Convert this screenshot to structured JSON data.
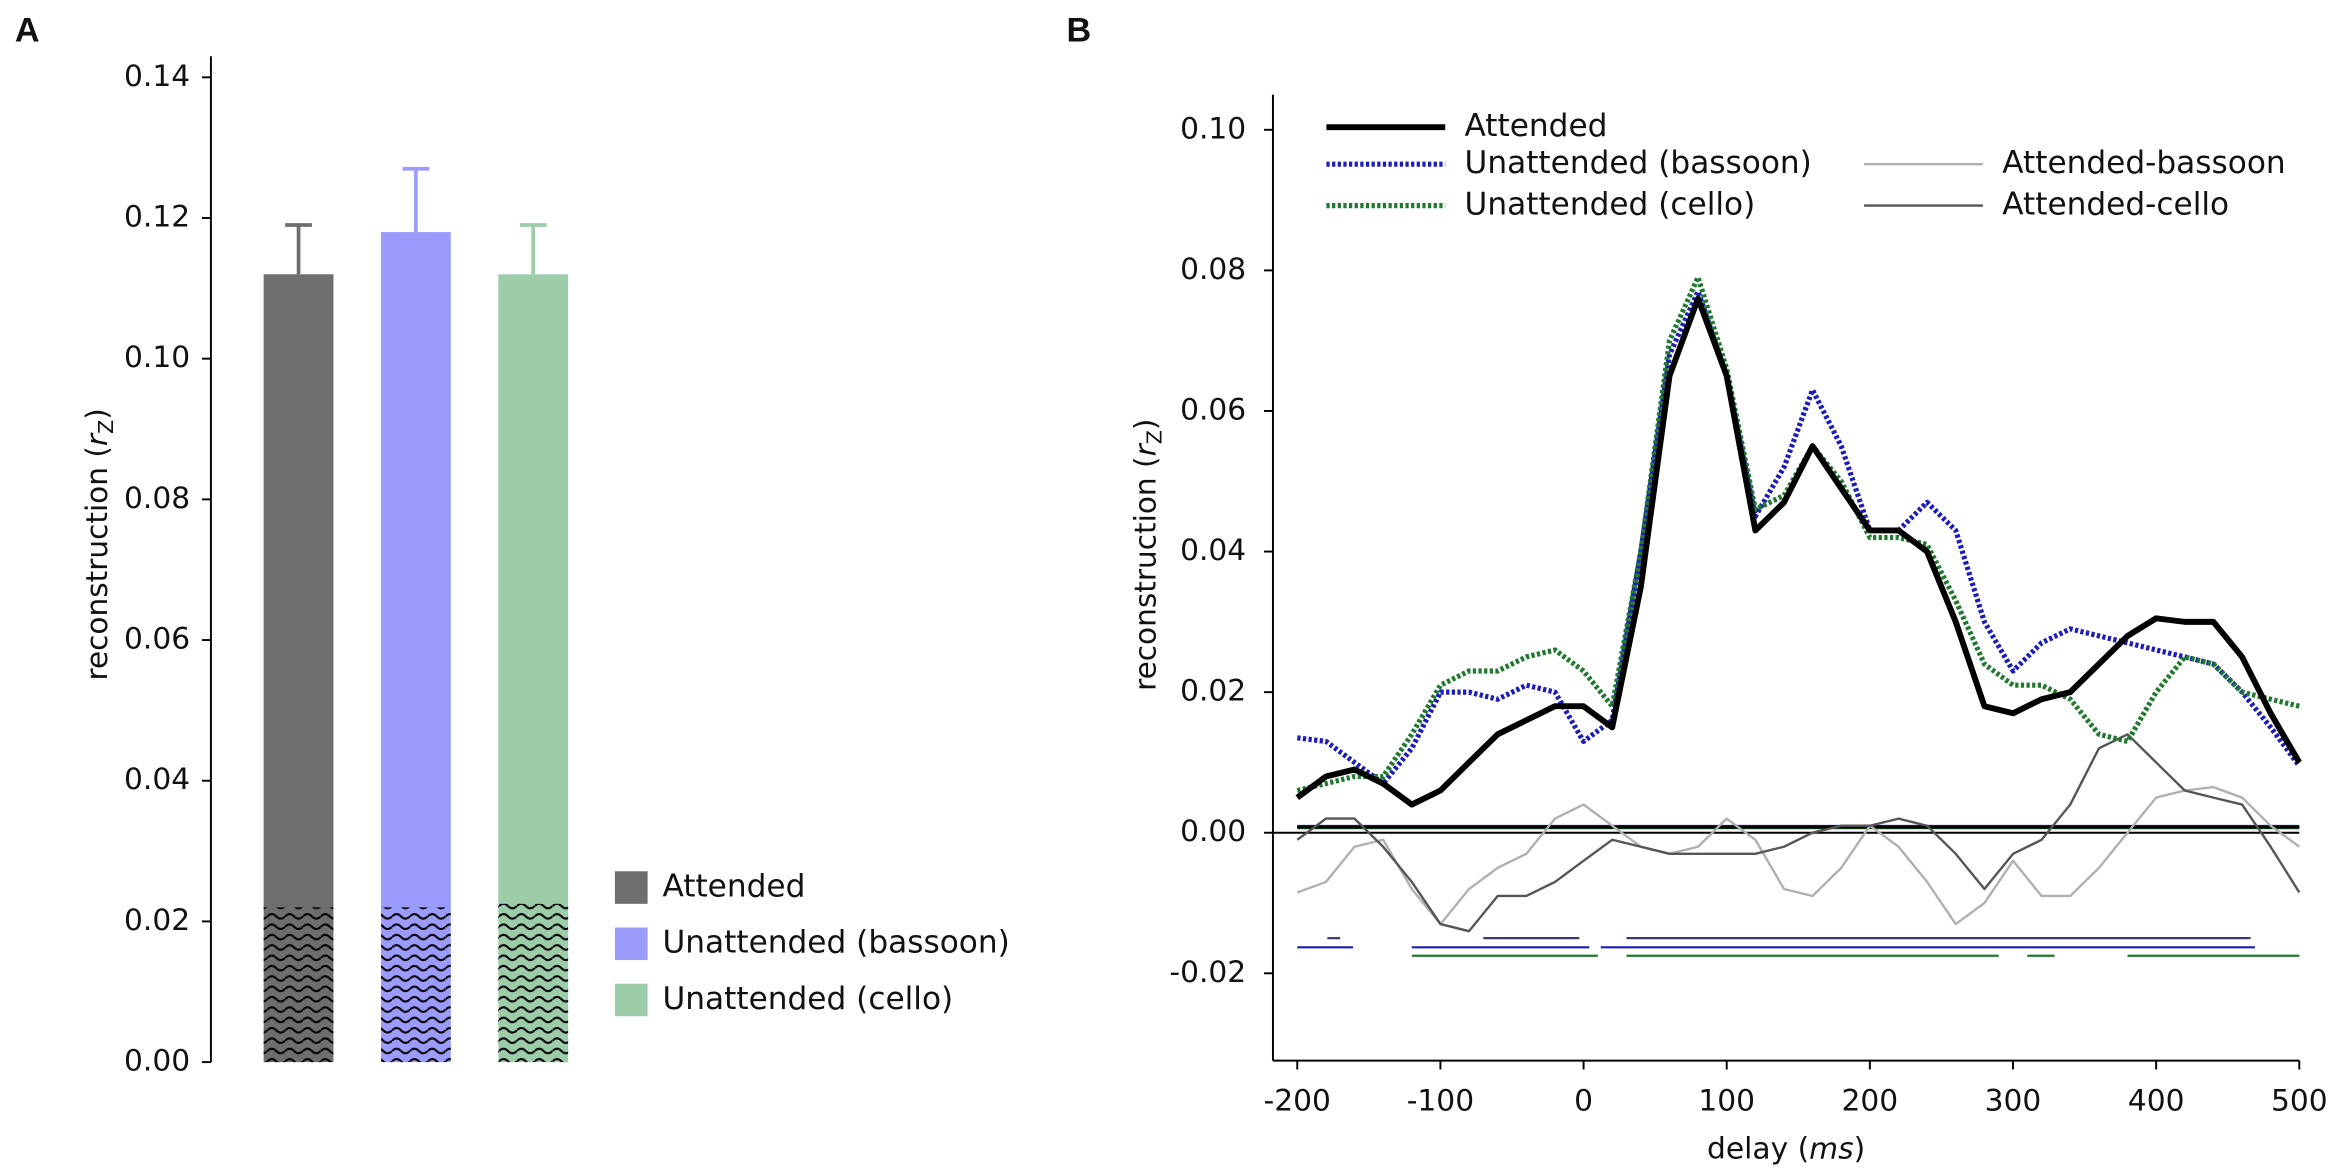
{
  "chart_data": [
    {
      "type": "bar",
      "panel": "A",
      "ylabel": [
        "reconstruction (",
        "r",
        "Z",
        ")"
      ],
      "categories": [
        "Attended",
        "Unattended (bassoon)",
        "Unattended (cello)"
      ],
      "values": [
        0.112,
        0.118,
        0.112
      ],
      "errors": [
        0.007,
        0.009,
        0.007
      ],
      "noise_floor": [
        0.022,
        0.022,
        0.0225
      ],
      "colors": [
        "#6e6e6e",
        "#9b9bfc",
        "#9dcda8"
      ],
      "ylim": [
        0,
        0.143
      ],
      "yticks": [
        {
          "value": 0,
          "label": "0.00"
        },
        {
          "value": 0.02,
          "label": "0.02"
        },
        {
          "value": 0.04,
          "label": "0.04"
        },
        {
          "value": 0.06,
          "label": "0.06"
        },
        {
          "value": 0.08,
          "label": "0.08"
        },
        {
          "value": 0.1,
          "label": "0.10"
        },
        {
          "value": 0.12,
          "label": "0.12"
        },
        {
          "value": 0.14,
          "label": "0.14"
        }
      ],
      "legend": "lower right"
    },
    {
      "type": "line",
      "panel": "B",
      "ylabel": [
        "reconstruction (",
        "r",
        "Z",
        ")"
      ],
      "xlabel": [
        "delay (",
        "ms",
        ")"
      ],
      "x": [
        -200,
        -180,
        -160,
        -140,
        -120,
        -100,
        -80,
        -60,
        -40,
        -20,
        0,
        20,
        40,
        60,
        80,
        100,
        120,
        140,
        160,
        180,
        200,
        220,
        240,
        260,
        280,
        300,
        320,
        340,
        360,
        380,
        400,
        420,
        440,
        460,
        480,
        500
      ],
      "series": [
        {
          "name": "Attended",
          "color": "#000000",
          "style": "thick",
          "values": [
            0.005,
            0.008,
            0.009,
            0.007,
            0.004,
            0.006,
            0.01,
            0.014,
            0.016,
            0.018,
            0.018,
            0.015,
            0.035,
            0.065,
            0.076,
            0.065,
            0.043,
            0.047,
            0.055,
            0.049,
            0.043,
            0.043,
            0.04,
            0.03,
            0.018,
            0.017,
            0.019,
            0.02,
            0.024,
            0.028,
            0.0305,
            0.03,
            0.03,
            0.025,
            0.017,
            0.01
          ]
        },
        {
          "name": "Unattended (bassoon)",
          "color": "#1c1cb8",
          "style": "dotted",
          "values": [
            0.0135,
            0.013,
            0.01,
            0.007,
            0.012,
            0.02,
            0.02,
            0.019,
            0.021,
            0.02,
            0.013,
            0.016,
            0.04,
            0.068,
            0.077,
            0.065,
            0.045,
            0.052,
            0.063,
            0.055,
            0.043,
            0.043,
            0.047,
            0.043,
            0.03,
            0.023,
            0.027,
            0.029,
            0.028,
            0.027,
            0.026,
            0.025,
            0.024,
            0.02,
            0.015,
            0.0095
          ]
        },
        {
          "name": "Unattended (cello)",
          "color": "#1f7a2e",
          "style": "dotted",
          "values": [
            0.006,
            0.007,
            0.008,
            0.008,
            0.014,
            0.021,
            0.023,
            0.023,
            0.025,
            0.026,
            0.023,
            0.018,
            0.04,
            0.07,
            0.079,
            0.066,
            0.046,
            0.048,
            0.055,
            0.05,
            0.042,
            0.042,
            0.041,
            0.033,
            0.024,
            0.021,
            0.021,
            0.019,
            0.014,
            0.013,
            0.02,
            0.025,
            0.024,
            0.02,
            0.019,
            0.018
          ]
        },
        {
          "name": "Attended-bassoon",
          "color": "#b0b0b0",
          "style": "thin",
          "values": [
            -0.0085,
            -0.007,
            -0.002,
            -0.001,
            -0.008,
            -0.013,
            -0.008,
            -0.005,
            -0.003,
            0.002,
            0.004,
            0.001,
            -0.002,
            -0.003,
            -0.002,
            0.002,
            -0.001,
            -0.008,
            -0.009,
            -0.005,
            0.001,
            -0.002,
            -0.007,
            -0.013,
            -0.01,
            -0.004,
            -0.009,
            -0.009,
            -0.005,
            0.0,
            0.005,
            0.006,
            0.0065,
            0.005,
            0.001,
            -0.002
          ]
        },
        {
          "name": "Attended-cello",
          "color": "#555555",
          "style": "thin",
          "values": [
            -0.001,
            0.002,
            0.002,
            -0.002,
            -0.007,
            -0.013,
            -0.014,
            -0.009,
            -0.009,
            -0.007,
            -0.004,
            -0.001,
            -0.002,
            -0.003,
            -0.003,
            -0.003,
            -0.003,
            -0.002,
            0.0,
            0.001,
            0.001,
            0.002,
            0.001,
            -0.003,
            -0.008,
            -0.003,
            -0.001,
            0.004,
            0.012,
            0.014,
            0.01,
            0.006,
            0.005,
            0.004,
            -0.002,
            -0.0085
          ]
        }
      ],
      "chance_levels": [
        {
          "color": "#1c1cb8",
          "value": 0.0009
        },
        {
          "color": "#1f7a2e",
          "value": 0.0007
        },
        {
          "color": "#000000",
          "value": 0.0008
        }
      ],
      "significance": [
        {
          "color": "#3a3a6a",
          "y": -0.015,
          "segments": [
            [
              -179,
              -170
            ],
            [
              -70,
              -3
            ],
            [
              30,
              466
            ]
          ]
        },
        {
          "color": "#1c1cb8",
          "y": -0.0163,
          "segments": [
            [
              -200,
              -161
            ],
            [
              -120,
              4
            ],
            [
              12,
              469
            ]
          ]
        },
        {
          "color": "#1f7a2e",
          "y": -0.0175,
          "segments": [
            [
              -120,
              10
            ],
            [
              30,
              290
            ],
            [
              310,
              329
            ],
            [
              380,
              500
            ]
          ]
        }
      ],
      "xlim": [
        -217,
        500
      ],
      "ylim": [
        -0.032,
        0.105
      ],
      "xticks": [
        -200,
        -100,
        0,
        100,
        200,
        300,
        400,
        500
      ],
      "yticks": [
        {
          "value": -0.02,
          "label": "-0.02"
        },
        {
          "value": 0,
          "label": "0.00"
        },
        {
          "value": 0.02,
          "label": "0.02"
        },
        {
          "value": 0.04,
          "label": "0.04"
        },
        {
          "value": 0.06,
          "label": "0.06"
        },
        {
          "value": 0.08,
          "label": "0.08"
        },
        {
          "value": 0.1,
          "label": "0.10"
        }
      ],
      "zero_line": true,
      "legend": "upper left"
    }
  ]
}
